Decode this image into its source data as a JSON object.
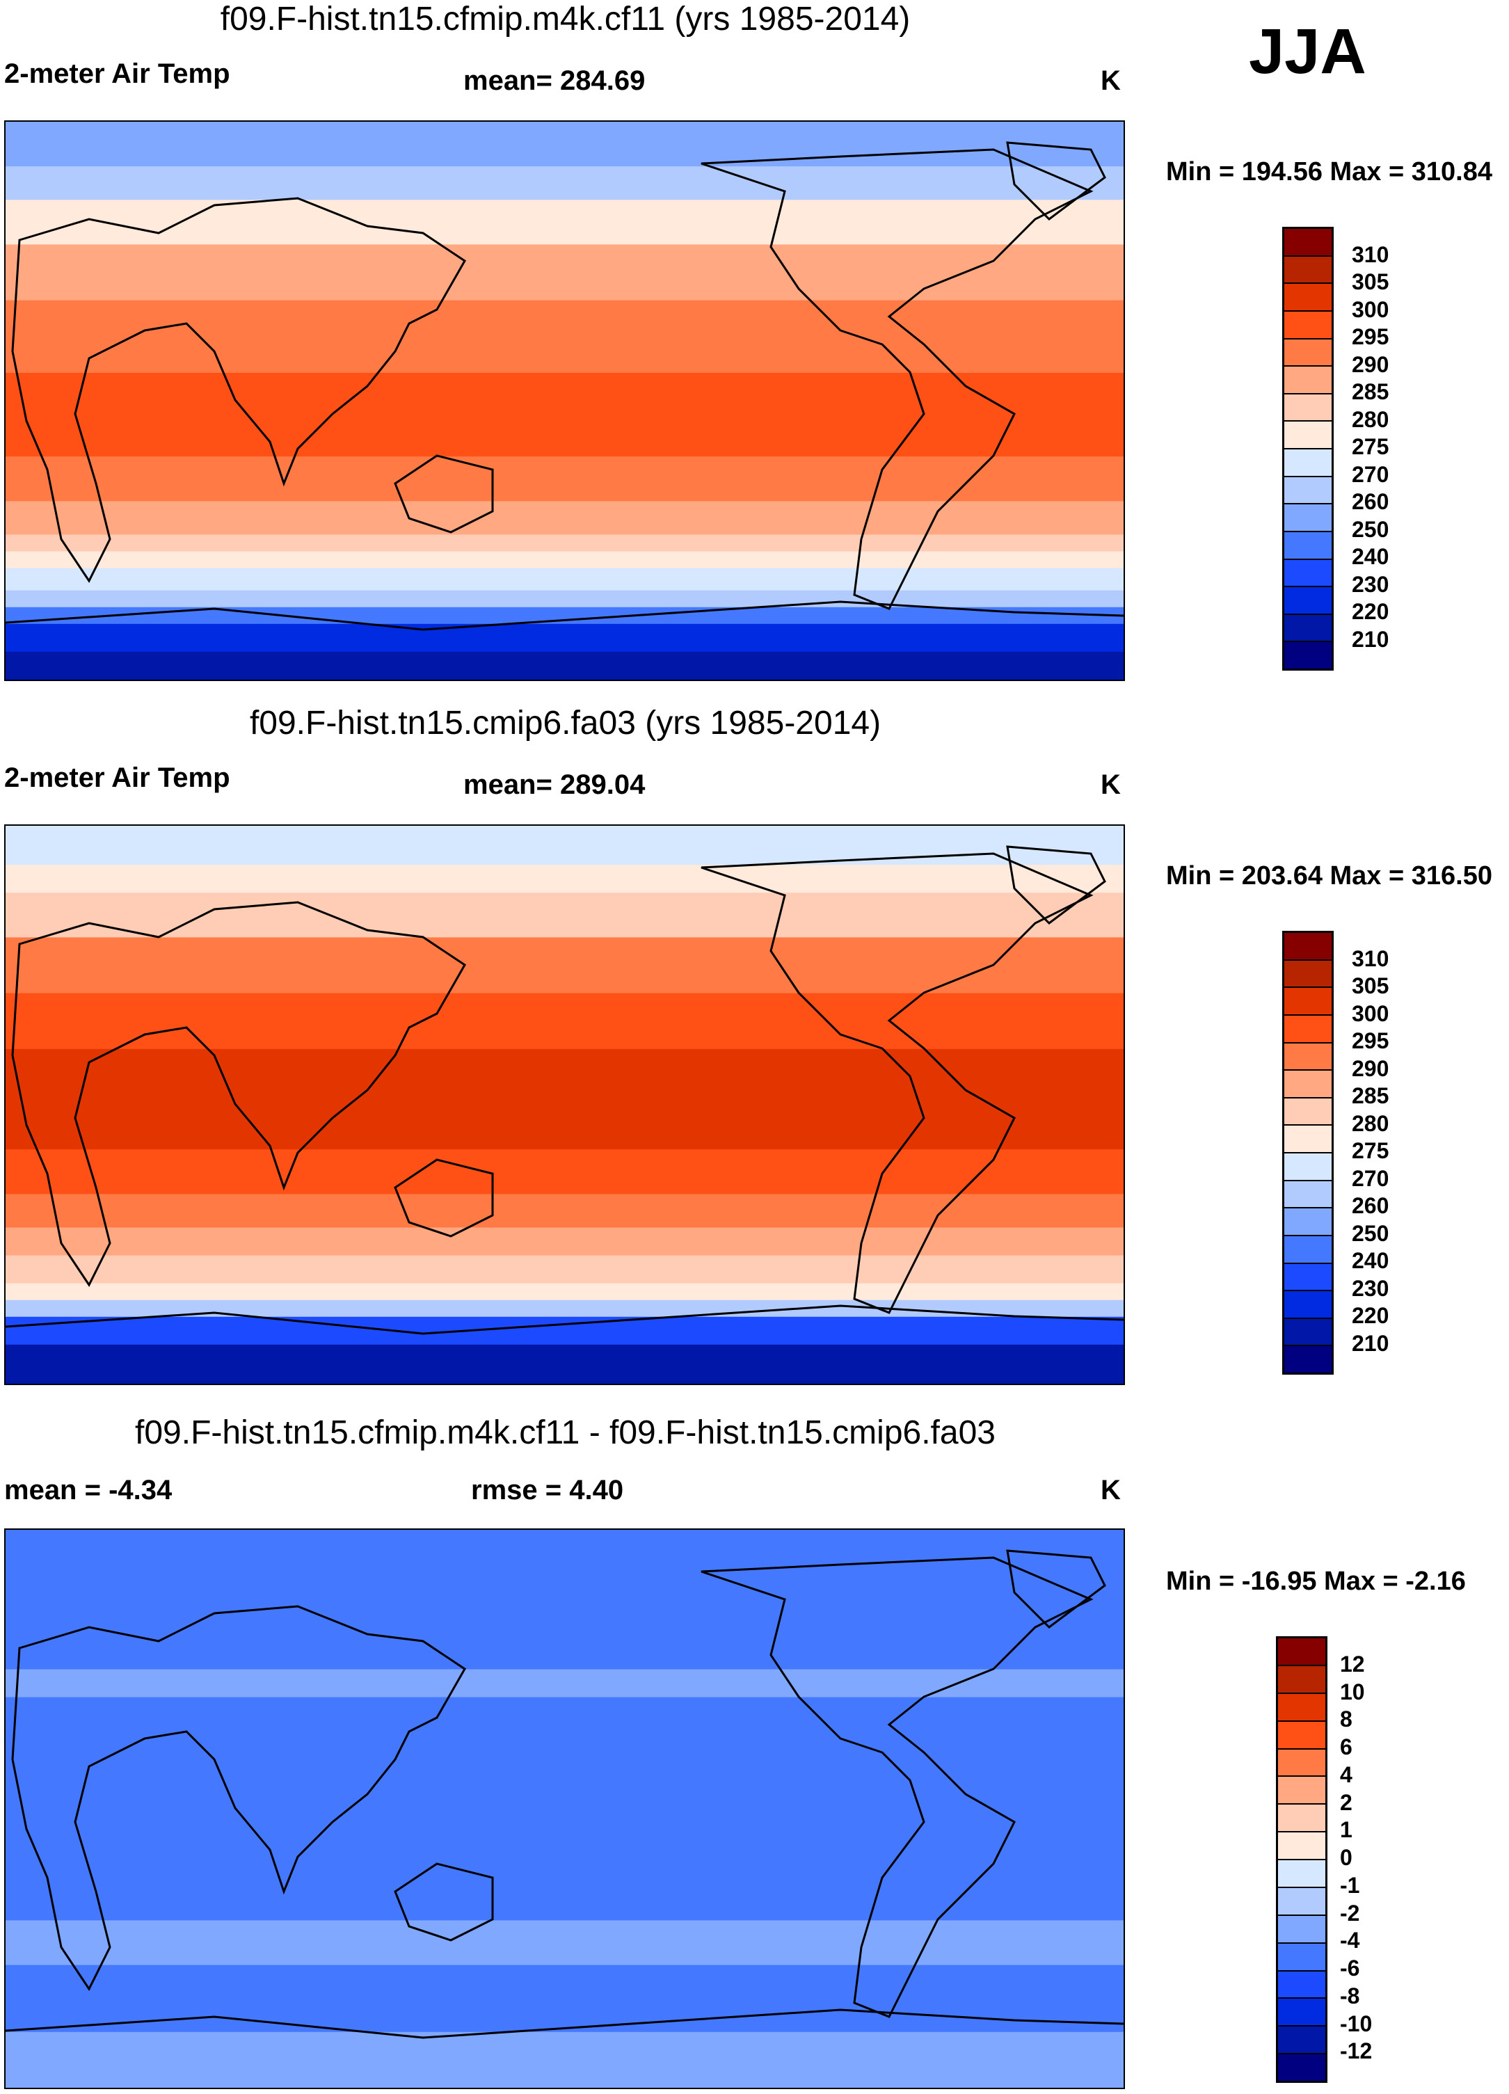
{
  "season": "JJA",
  "panels": [
    {
      "title": "f09.F-hist.tn15.cfmip.m4k.cf11 (yrs 1985-2014)",
      "left_label": "2-meter Air Temp",
      "center_label": "mean= 284.69",
      "units": "K",
      "minmax": "Min = 194.56 Max = 310.84"
    },
    {
      "title": "f09.F-hist.tn15.cmip6.fa03 (yrs 1985-2014)",
      "left_label": "2-meter Air Temp",
      "center_label": "mean= 289.04",
      "units": "K",
      "minmax": "Min = 203.64 Max = 316.50"
    },
    {
      "title": "f09.F-hist.tn15.cfmip.m4k.cf11 - f09.F-hist.tn15.cmip6.fa03",
      "left_label": "mean =  -4.34",
      "center_label": "rmse =   4.40",
      "units": "K",
      "minmax": "Min = -16.95 Max =  -2.16"
    }
  ],
  "chart_data": [
    {
      "type": "heatmap",
      "title": "f09.F-hist.tn15.cfmip.m4k.cf11 (yrs 1985-2014)",
      "variable": "2-meter Air Temp",
      "units": "K",
      "mean": 284.69,
      "min": 194.56,
      "max": 310.84,
      "colorbar_levels": [
        "310",
        "305",
        "300",
        "295",
        "290",
        "285",
        "280",
        "275",
        "270",
        "260",
        "250",
        "240",
        "230",
        "220",
        "210"
      ]
    },
    {
      "type": "heatmap",
      "title": "f09.F-hist.tn15.cmip6.fa03 (yrs 1985-2014)",
      "variable": "2-meter Air Temp",
      "units": "K",
      "mean": 289.04,
      "min": 203.64,
      "max": 316.5,
      "colorbar_levels": [
        "310",
        "305",
        "300",
        "295",
        "290",
        "285",
        "280",
        "275",
        "270",
        "260",
        "250",
        "240",
        "230",
        "220",
        "210"
      ]
    },
    {
      "type": "heatmap",
      "title": "f09.F-hist.tn15.cfmip.m4k.cf11 - f09.F-hist.tn15.cmip6.fa03",
      "units": "K",
      "mean": -4.34,
      "rmse": 4.4,
      "min": -16.95,
      "max": -2.16,
      "colorbar_levels": [
        "12",
        "10",
        "8",
        "6",
        "4",
        "2",
        "1",
        "0",
        "-1",
        "-2",
        "-4",
        "-6",
        "-8",
        "-10",
        "-12"
      ]
    }
  ],
  "colormap": [
    "#870000",
    "#b72500",
    "#e33500",
    "#ff5116",
    "#ff7a45",
    "#ffa882",
    "#ffcdb5",
    "#ffeadb",
    "#d5e8ff",
    "#b2cbff",
    "#80a8ff",
    "#4478ff",
    "#1c4bff",
    "#002be0",
    "#0017a8",
    "#000080"
  ]
}
